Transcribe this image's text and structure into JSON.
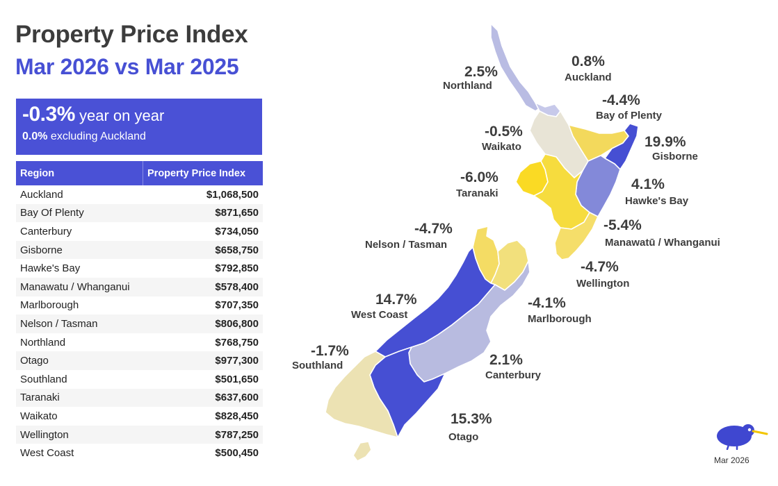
{
  "title": "Property Price Index",
  "subtitle": "Mar 2026 vs Mar 2025",
  "summary": {
    "value": "-0.3%",
    "value_suffix": "year on year",
    "excl_value": "0.0%",
    "excl_label": "excluding Auckland"
  },
  "table": {
    "headers": [
      "Region",
      "Property Price Index"
    ],
    "rows": [
      [
        "Auckland",
        "$1,068,500"
      ],
      [
        "Bay Of Plenty",
        "$871,650"
      ],
      [
        "Canterbury",
        "$734,050"
      ],
      [
        "Gisborne",
        "$658,750"
      ],
      [
        "Hawke's Bay",
        "$792,850"
      ],
      [
        "Manawatu / Whanganui",
        "$578,400"
      ],
      [
        "Marlborough",
        "$707,350"
      ],
      [
        "Nelson / Tasman",
        "$806,800"
      ],
      [
        "Northland",
        "$768,750"
      ],
      [
        "Otago",
        "$977,300"
      ],
      [
        "Southland",
        "$501,650"
      ],
      [
        "Taranaki",
        "$637,600"
      ],
      [
        "Waikato",
        "$828,450"
      ],
      [
        "Wellington",
        "$787,250"
      ],
      [
        "West Coast",
        "$500,450"
      ]
    ]
  },
  "map": {
    "regions": {
      "northland": {
        "name": "Northland",
        "change": "2.5%",
        "color": "#b9bce3"
      },
      "auckland": {
        "name": "Auckland",
        "change": "0.8%",
        "color": "#c7c9ea"
      },
      "waikato": {
        "name": "Waikato",
        "change": "-0.5%",
        "color": "#e8e4d6"
      },
      "bay_of_plenty": {
        "name": "Bay of Plenty",
        "change": "-4.4%",
        "color": "#f3d95c"
      },
      "gisborne": {
        "name": "Gisborne",
        "change": "19.9%",
        "color": "#464fd3"
      },
      "taranaki": {
        "name": "Taranaki",
        "change": "-6.0%",
        "color": "#fada24"
      },
      "hawkes_bay": {
        "name": "Hawke's Bay",
        "change": "4.1%",
        "color": "#8389d9"
      },
      "manawatu": {
        "name": "Manawatū / Whanganui",
        "change": "-5.4%",
        "color": "#f6dc3e"
      },
      "wellington": {
        "name": "Wellington",
        "change": "-4.7%",
        "color": "#f5de6a"
      },
      "nelson_tasman": {
        "name": "Nelson / Tasman",
        "change": "-4.7%",
        "color": "#f4dc64"
      },
      "marlborough": {
        "name": "Marlborough",
        "change": "-4.1%",
        "color": "#f2e07c"
      },
      "west_coast": {
        "name": "West Coast",
        "change": "14.7%",
        "color": "#464fd3"
      },
      "canterbury": {
        "name": "Canterbury",
        "change": "2.1%",
        "color": "#b8bbe0"
      },
      "otago": {
        "name": "Otago",
        "change": "15.3%",
        "color": "#464fd3"
      },
      "southland": {
        "name": "Southland",
        "change": "-1.7%",
        "color": "#ece2b3"
      }
    }
  },
  "footer": {
    "logo_icon": "kiwi-bird-icon",
    "date": "Mar 2026"
  }
}
